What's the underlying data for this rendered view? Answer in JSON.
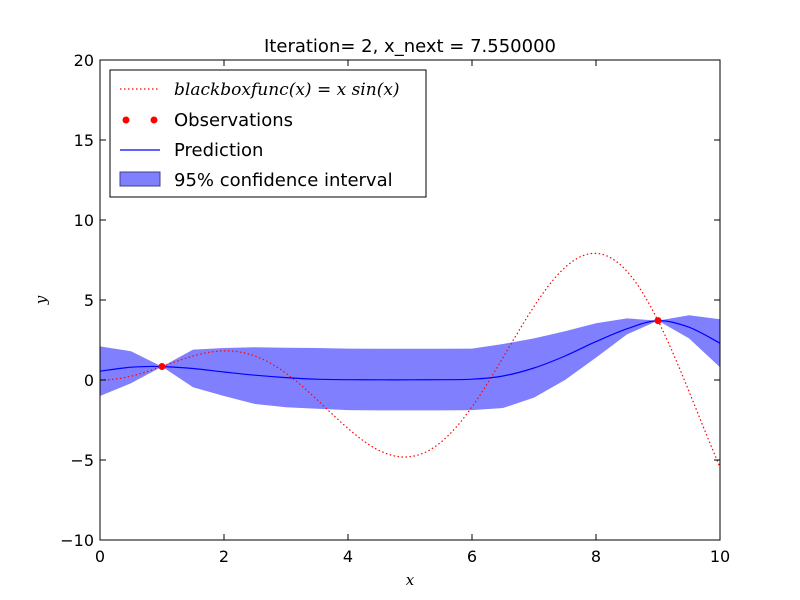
{
  "chart_data": {
    "type": "line",
    "title": "Iteration= 2,  x_next = 7.550000",
    "xlabel": "x",
    "ylabel": "y",
    "xlim": [
      0,
      10
    ],
    "ylim": [
      -10,
      20
    ],
    "xticks": [
      0,
      2,
      4,
      6,
      8,
      10
    ],
    "yticks": [
      -10,
      -5,
      0,
      5,
      10,
      15,
      20
    ],
    "legend_position": "top-left",
    "colors": {
      "blackbox": "#ff0000",
      "observations": "#ff0000",
      "prediction": "#0000ff",
      "confidence_fill": "#8080ff",
      "confidence_edge": "#404080"
    },
    "series": [
      {
        "name": "blackbox",
        "legend_label": "blackboxfunc(x) = x sin(x)",
        "style": "dotted",
        "function": "x*sin(x)"
      },
      {
        "name": "observations",
        "legend_label": "Observations",
        "style": "markers",
        "x": [
          1.0,
          9.0
        ],
        "y": [
          0.84,
          3.71
        ]
      },
      {
        "name": "prediction",
        "legend_label": "Prediction",
        "style": "solid",
        "x": [
          0,
          0.5,
          1.0,
          1.5,
          2.0,
          2.5,
          3.0,
          3.5,
          4.0,
          4.5,
          5.0,
          5.5,
          6.0,
          6.5,
          7.0,
          7.5,
          8.0,
          8.5,
          9.0,
          9.5,
          10.0
        ],
        "y": [
          0.55,
          0.8,
          0.84,
          0.72,
          0.5,
          0.3,
          0.15,
          0.05,
          0.02,
          0.01,
          0.01,
          0.02,
          0.05,
          0.25,
          0.75,
          1.5,
          2.4,
          3.2,
          3.71,
          3.3,
          2.3
        ]
      },
      {
        "name": "confidence",
        "legend_label": "95% confidence interval",
        "style": "band",
        "x": [
          0,
          0.5,
          1.0,
          1.5,
          2.0,
          2.5,
          3.0,
          3.5,
          4.0,
          4.5,
          5.0,
          5.5,
          6.0,
          6.5,
          7.0,
          7.5,
          8.0,
          8.5,
          9.0,
          9.5,
          10.0
        ],
        "lower": [
          -1.0,
          -0.2,
          0.84,
          -0.45,
          -1.0,
          -1.5,
          -1.7,
          -1.8,
          -1.88,
          -1.9,
          -1.9,
          -1.9,
          -1.88,
          -1.75,
          -1.1,
          0.0,
          1.4,
          2.85,
          3.71,
          2.6,
          0.8
        ],
        "upper": [
          2.1,
          1.8,
          0.84,
          1.9,
          2.0,
          2.05,
          2.02,
          2.0,
          1.96,
          1.95,
          1.95,
          1.95,
          1.96,
          2.25,
          2.6,
          3.05,
          3.55,
          3.85,
          3.71,
          4.05,
          3.8
        ]
      }
    ]
  }
}
